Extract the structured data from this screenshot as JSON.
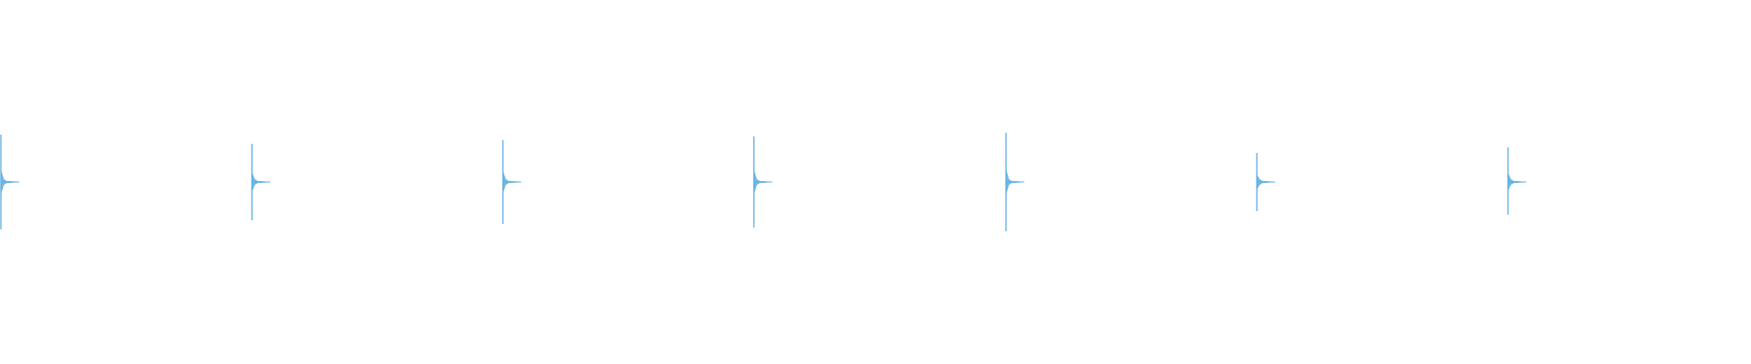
{
  "chart_data": {
    "type": "waveform",
    "color": "#5aaee0",
    "xlim": [
      0,
      1
    ],
    "ylim": [
      -1,
      1
    ],
    "x": [
      0,
      0.1435,
      0.287,
      0.4305,
      0.5746,
      0.718,
      0.8616
    ],
    "values": [
      0.26,
      0.21,
      0.23,
      0.25,
      0.27,
      0.16,
      0.19
    ],
    "troughs": [
      -0.26,
      -0.21,
      -0.23,
      -0.25,
      -0.27,
      -0.16,
      -0.18
    ]
  }
}
